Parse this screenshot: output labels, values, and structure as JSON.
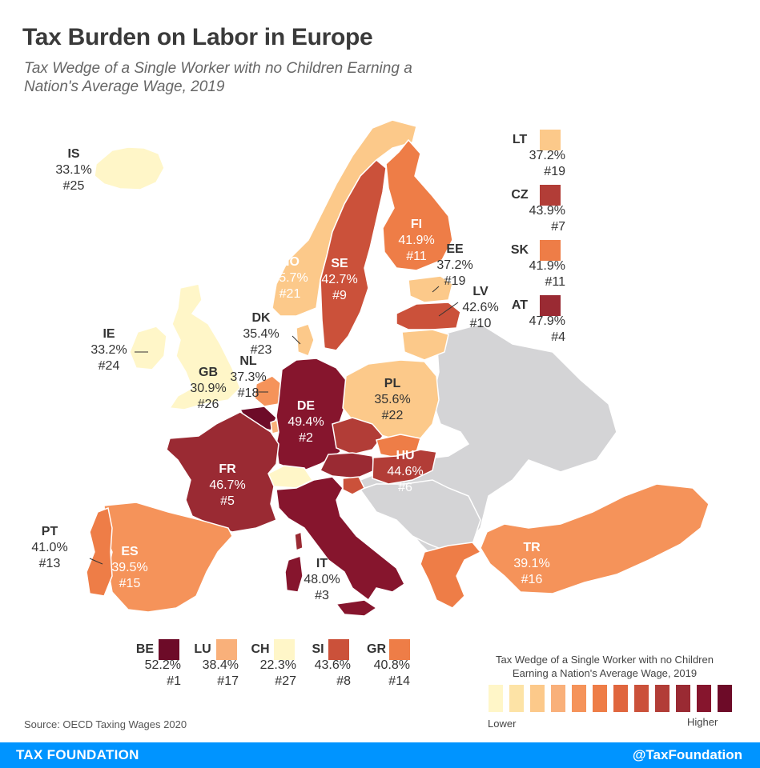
{
  "title": "Tax Burden on Labor in Europe",
  "subtitle": "Tax Wedge of a Single Worker with no Children Earning a Nation's Average Wage, 2019",
  "source": "Source: OECD Taxing Wages 2020",
  "footer": {
    "left": "TAX FOUNDATION",
    "right": "@TaxFoundation"
  },
  "colors": {
    "c1": "#fff6c8",
    "c2": "#fde3a6",
    "c3": "#fcc98a",
    "c4": "#f9b07a",
    "c5": "#f5935a",
    "c6": "#ee7d47",
    "c7": "#e0663e",
    "c8": "#cb513a",
    "c9": "#b23d37",
    "c10": "#9a2a33",
    "c11": "#86152d",
    "c12": "#6d0b28",
    "gray": "#d4d4d6",
    "nondata": "#d4d4d6"
  },
  "countries": {
    "IS": {
      "code": "IS",
      "value": "33.1%",
      "rank": "#25"
    },
    "IE": {
      "code": "IE",
      "value": "33.2%",
      "rank": "#24"
    },
    "GB": {
      "code": "GB",
      "value": "30.9%",
      "rank": "#26"
    },
    "NO": {
      "code": "NO",
      "value": "35.7%",
      "rank": "#21"
    },
    "SE": {
      "code": "SE",
      "value": "42.7%",
      "rank": "#9"
    },
    "FI": {
      "code": "FI",
      "value": "41.9%",
      "rank": "#11"
    },
    "EE": {
      "code": "EE",
      "value": "37.2%",
      "rank": "#19"
    },
    "LV": {
      "code": "LV",
      "value": "42.6%",
      "rank": "#10"
    },
    "DK": {
      "code": "DK",
      "value": "35.4%",
      "rank": "#23"
    },
    "NL": {
      "code": "NL",
      "value": "37.3%",
      "rank": "#18"
    },
    "DE": {
      "code": "DE",
      "value": "49.4%",
      "rank": "#2"
    },
    "PL": {
      "code": "PL",
      "value": "35.6%",
      "rank": "#22"
    },
    "FR": {
      "code": "FR",
      "value": "46.7%",
      "rank": "#5"
    },
    "HU": {
      "code": "HU",
      "value": "44.6%",
      "rank": "#6"
    },
    "PT": {
      "code": "PT",
      "value": "41.0%",
      "rank": "#13"
    },
    "ES": {
      "code": "ES",
      "value": "39.5%",
      "rank": "#15"
    },
    "IT": {
      "code": "IT",
      "value": "48.0%",
      "rank": "#3"
    },
    "TR": {
      "code": "TR",
      "value": "39.1%",
      "rank": "#16"
    }
  },
  "legend_right": [
    {
      "code": "LT",
      "value": "37.2%",
      "rank": "#19"
    },
    {
      "code": "CZ",
      "value": "43.9%",
      "rank": "#7"
    },
    {
      "code": "SK",
      "value": "41.9%",
      "rank": "#11"
    },
    {
      "code": "AT",
      "value": "47.9%",
      "rank": "#4"
    }
  ],
  "legend_bottom": [
    {
      "code": "BE",
      "value": "52.2%",
      "rank": "#1"
    },
    {
      "code": "LU",
      "value": "38.4%",
      "rank": "#17"
    },
    {
      "code": "CH",
      "value": "22.3%",
      "rank": "#27"
    },
    {
      "code": "SI",
      "value": "43.6%",
      "rank": "#8"
    },
    {
      "code": "GR",
      "value": "40.8%",
      "rank": "#14"
    }
  ],
  "scale": {
    "title": "Tax Wedge of a Single Worker with no Children Earning a Nation's Average Wage, 2019",
    "low": "Lower",
    "high": "Higher"
  }
}
